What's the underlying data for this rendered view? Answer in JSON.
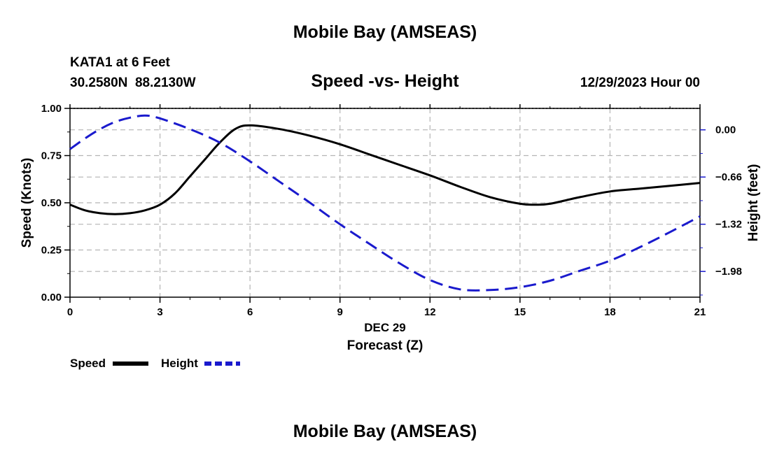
{
  "page": {
    "title": "Mobile Bay (AMSEAS)",
    "footer_title": "Mobile Bay (AMSEAS)",
    "station_line": "KATA1 at 6 Feet",
    "location_line": "30.2580N  88.2130W",
    "chart_title": "Speed -vs- Height",
    "date_line": "12/29/2023 Hour 00"
  },
  "chart_data": {
    "type": "line",
    "title": "Speed -vs- Height",
    "xlabel": "Forecast (Z)",
    "xlabel_date": "DEC 29",
    "ylabel": "Speed (Knots)",
    "ylabel_right": "Height (feet)",
    "xlim": [
      0,
      21
    ],
    "ylim": [
      0,
      1
    ],
    "ylim_right": [
      -2.34,
      0.3
    ],
    "x_ticks": [
      0,
      3,
      6,
      9,
      12,
      15,
      18,
      21
    ],
    "x_tick_labels": [
      "0",
      "3",
      "6",
      "9",
      "12",
      "15",
      "18",
      "21"
    ],
    "y_ticks": [
      0,
      0.25,
      0.5,
      0.75,
      1.0
    ],
    "y_tick_labels": [
      "0.00",
      "0.25",
      "0.50",
      "0.75",
      "1.00"
    ],
    "y_right_ticks": [
      0.0,
      -0.66,
      -1.32,
      -1.98
    ],
    "y_right_tick_labels": [
      "0.00",
      "−0.66",
      "−1.32",
      "−1.98"
    ],
    "grid": true,
    "legend_position": "bottom-left",
    "series": [
      {
        "name": "Speed",
        "axis": "left",
        "color": "#000000",
        "style": "solid",
        "x": [
          0,
          0.5,
          1,
          1.5,
          2,
          2.5,
          3,
          3.5,
          4,
          4.5,
          5,
          5.5,
          6,
          7,
          8,
          9,
          10,
          11,
          12,
          13,
          14,
          15,
          15.5,
          16,
          17,
          18,
          19,
          20,
          21
        ],
        "values": [
          0.49,
          0.46,
          0.445,
          0.44,
          0.445,
          0.46,
          0.49,
          0.55,
          0.64,
          0.73,
          0.82,
          0.89,
          0.91,
          0.89,
          0.855,
          0.81,
          0.755,
          0.7,
          0.645,
          0.585,
          0.53,
          0.495,
          0.49,
          0.495,
          0.53,
          0.56,
          0.575,
          0.59,
          0.605
        ]
      },
      {
        "name": "Height",
        "axis": "right",
        "color": "#1a1acd",
        "style": "dashed",
        "x": [
          0,
          0.5,
          1,
          1.5,
          2,
          2.5,
          3,
          4,
          5,
          6,
          7,
          8,
          9,
          10,
          11,
          12,
          13,
          14,
          15,
          16,
          17,
          18,
          19,
          20,
          21
        ],
        "values": [
          -0.27,
          -0.12,
          0.01,
          0.11,
          0.17,
          0.2,
          0.16,
          0.01,
          -0.18,
          -0.44,
          -0.73,
          -1.02,
          -1.32,
          -1.6,
          -1.87,
          -2.1,
          -2.23,
          -2.24,
          -2.2,
          -2.11,
          -1.97,
          -1.83,
          -1.64,
          -1.43,
          -1.21
        ]
      }
    ]
  }
}
